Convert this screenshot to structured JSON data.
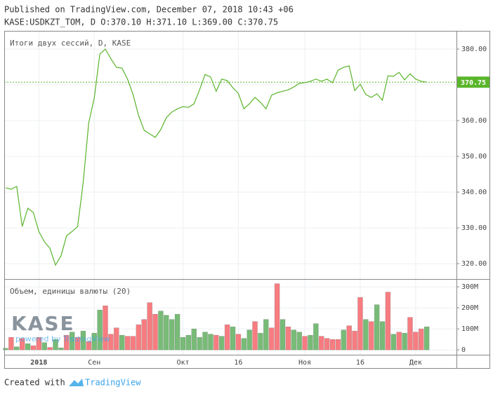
{
  "header": {
    "line1": "Published on TradingView.com, December 07, 2018 10:43 +06",
    "line2": "KASE:USDKZT_TOM, D O:370.10 H:371.10 L:369.00 C:370.75"
  },
  "chart_data": [
    {
      "type": "line",
      "title": "Итоги двух сессий, D, KASE",
      "color": "#5ab52b",
      "categories": [
        null,
        null,
        null,
        null,
        null,
        null,
        "2018",
        null,
        null,
        null,
        null,
        null,
        null,
        null,
        null,
        null,
        "Сен",
        null,
        null,
        null,
        null,
        null,
        null,
        null,
        null,
        null,
        null,
        null,
        null,
        null,
        null,
        null,
        "Окт",
        null,
        null,
        null,
        null,
        null,
        null,
        null,
        null,
        null,
        "16",
        null,
        null,
        null,
        null,
        null,
        null,
        null,
        null,
        null,
        null,
        null,
        "Ноя",
        null,
        null,
        null,
        null,
        null,
        null,
        null,
        null,
        null,
        "16",
        null,
        null,
        null,
        null,
        null,
        null,
        null,
        null,
        null,
        "Дек",
        null,
        null
      ],
      "values": [
        341.2,
        340.8,
        341.6,
        330.4,
        335.5,
        334.3,
        329.0,
        326.1,
        324.3,
        319.6,
        322.2,
        327.8,
        329.0,
        330.4,
        342.7,
        359.4,
        366.3,
        378.6,
        380.0,
        377.3,
        374.9,
        374.7,
        371.6,
        367.3,
        361.4,
        357.3,
        356.3,
        355.3,
        357.5,
        360.8,
        362.4,
        363.3,
        363.9,
        363.7,
        364.7,
        368.6,
        372.9,
        372.2,
        368.2,
        371.6,
        371.2,
        369.2,
        367.6,
        363.3,
        364.7,
        366.5,
        365.1,
        363.3,
        367.1,
        367.8,
        368.2,
        368.6,
        369.4,
        370.4,
        370.6,
        371.0,
        371.6,
        371.0,
        371.6,
        370.6,
        374.1,
        374.9,
        375.3,
        368.4,
        370.2,
        367.3,
        366.5,
        367.5,
        365.7,
        372.5,
        372.4,
        373.5,
        371.4,
        373.1,
        371.6,
        371.0,
        370.75
      ],
      "ylim": [
        315.7,
        385.1
      ],
      "yticks": [
        {
          "value": 320,
          "label": "320.00"
        },
        {
          "value": 330,
          "label": "330.00"
        },
        {
          "value": 340,
          "label": "340.00"
        },
        {
          "value": 350,
          "label": "350.00"
        },
        {
          "value": 360,
          "label": "360.00"
        },
        {
          "value": 370,
          "label": "370.00"
        },
        {
          "value": 380,
          "label": "380.00"
        }
      ],
      "grid": true
    },
    {
      "type": "bar",
      "title": "Объем, единицы валюты (20)",
      "values": [
        8000000,
        60000000,
        15000000,
        55000000,
        30000000,
        20000000,
        60000000,
        35000000,
        12000000,
        50000000,
        10000000,
        70000000,
        85000000,
        60000000,
        90000000,
        40000000,
        80000000,
        190000000,
        210000000,
        75000000,
        105000000,
        70000000,
        65000000,
        65000000,
        120000000,
        145000000,
        225000000,
        170000000,
        185000000,
        165000000,
        145000000,
        170000000,
        60000000,
        70000000,
        100000000,
        60000000,
        85000000,
        75000000,
        70000000,
        65000000,
        120000000,
        110000000,
        75000000,
        55000000,
        95000000,
        135000000,
        80000000,
        145000000,
        105000000,
        315000000,
        145000000,
        110000000,
        95000000,
        85000000,
        65000000,
        70000000,
        125000000,
        65000000,
        55000000,
        50000000,
        50000000,
        95000000,
        115000000,
        90000000,
        250000000,
        145000000,
        135000000,
        215000000,
        135000000,
        275000000,
        75000000,
        85000000,
        80000000,
        155000000,
        85000000,
        100000000,
        110000000
      ],
      "colors": [
        "#77bb77",
        "#f77c80",
        "#77bb77",
        "#f77c80",
        "#77bb77",
        "#f77c80",
        "#f77c80",
        "#77bb77",
        "#f77c80",
        "#77bb77",
        "#77bb77",
        "#f77c80",
        "#77bb77",
        "#f77c80",
        "#77bb77",
        "#f77c80",
        "#77bb77",
        "#77bb77",
        "#f77c80",
        "#f77c80",
        "#f77c80",
        "#77bb77",
        "#f77c80",
        "#f77c80",
        "#f77c80",
        "#f77c80",
        "#f77c80",
        "#f77c80",
        "#77bb77",
        "#77bb77",
        "#77bb77",
        "#77bb77",
        "#77bb77",
        "#77bb77",
        "#77bb77",
        "#77bb77",
        "#77bb77",
        "#77bb77",
        "#f77c80",
        "#77bb77",
        "#f77c80",
        "#77bb77",
        "#f77c80",
        "#77bb77",
        "#77bb77",
        "#f77c80",
        "#77bb77",
        "#77bb77",
        "#f77c80",
        "#f77c80",
        "#77bb77",
        "#f77c80",
        "#77bb77",
        "#77bb77",
        "#f77c80",
        "#77bb77",
        "#77bb77",
        "#f77c80",
        "#f77c80",
        "#f77c80",
        "#f77c80",
        "#77bb77",
        "#f77c80",
        "#f77c80",
        "#f77c80",
        "#77bb77",
        "#f77c80",
        "#77bb77",
        "#77bb77",
        "#f77c80",
        "#77bb77",
        "#f77c80",
        "#77bb77",
        "#f77c80",
        "#f77c80",
        "#f77c80",
        "#77bb77"
      ],
      "ylim": [
        -23000000,
        337000000
      ],
      "yticks": [
        0,
        {
          "value": 100000000,
          "label": "100M"
        },
        {
          "value": 200000000,
          "label": "200M"
        },
        {
          "value": 300000000,
          "label": "300M"
        }
      ],
      "grid": true
    }
  ],
  "watermark": {
    "logo": "KASE",
    "powered": "powered by TradingView"
  },
  "footer": {
    "text": "Created with",
    "brand": "TradingView"
  }
}
